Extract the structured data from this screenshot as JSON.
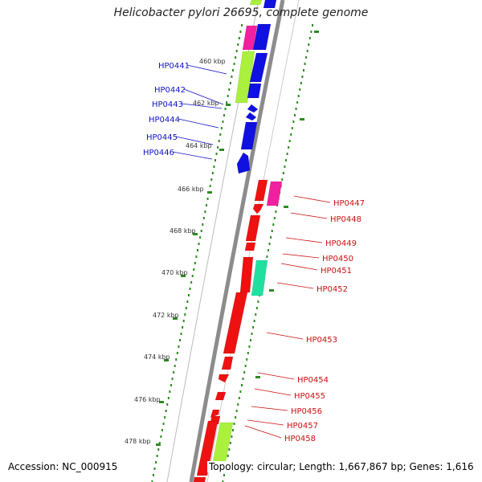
{
  "title": "Helicobacter pylori 26695, complete genome",
  "footer": {
    "accession": "Accession: NC_000915",
    "topology": "Topology: circular; Length: 1,667,867 bp; Genes: 1,616"
  },
  "colors": {
    "backbone": "#8c8c8c",
    "ticks": "#2e8b22",
    "left_labels": "#1414c8",
    "right_labels": "#cc1010",
    "blue": "#1010e0",
    "red": "#ee1111",
    "magenta": "#f020a0",
    "lime": "#aaf03c",
    "teal": "#20e0a0"
  },
  "scale_labels": [
    "460 kbp",
    "462 kbp",
    "464 kbp",
    "466 kbp",
    "468 kbp",
    "470 kbp",
    "472 kbp",
    "474 kbp",
    "476 kbp",
    "478 kbp"
  ],
  "left_genes": [
    "HP0441",
    "HP0442",
    "HP0443",
    "HP0444",
    "HP0445",
    "HP0446"
  ],
  "right_genes": [
    "HP0447",
    "HP0448",
    "HP0449",
    "HP0450",
    "HP0451",
    "HP0452",
    "HP0453",
    "HP0454",
    "HP0455",
    "HP0456",
    "HP0457",
    "HP0458"
  ]
}
